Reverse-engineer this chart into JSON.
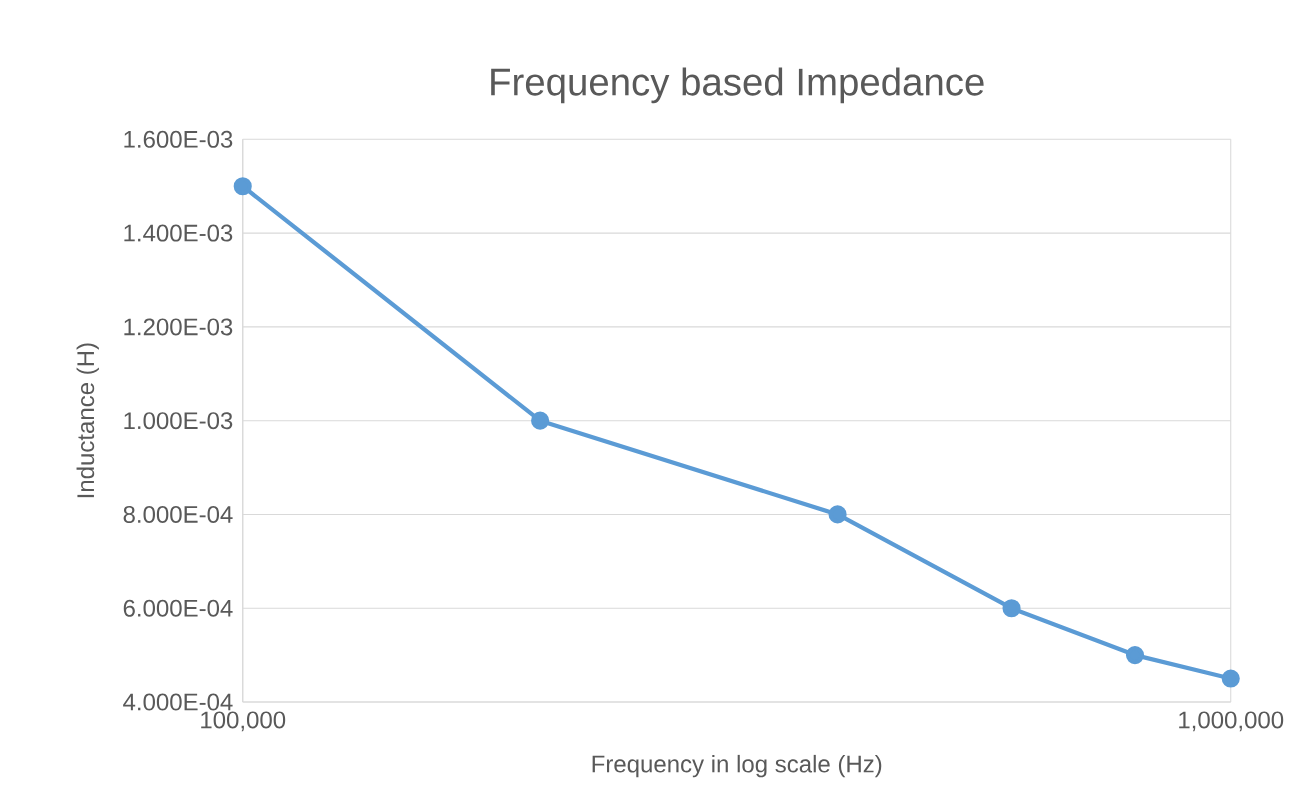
{
  "chart_data": {
    "type": "line",
    "title": "Frequency based Impedance",
    "xlabel": "Frequency in log scale (Hz)",
    "ylabel": "Inductance (H)",
    "x": [
      100000,
      200000,
      400000,
      600000,
      800000,
      1000000
    ],
    "values": [
      0.0015,
      0.001,
      0.0008,
      0.0006,
      0.0005,
      0.00045
    ],
    "color": "#5b9bd5",
    "marker": "circle",
    "line_style": "solid",
    "log": "x",
    "grid": true,
    "xlim": [
      100000,
      1000000
    ],
    "xticks": [
      {
        "value": 100000,
        "label": "100,000"
      },
      {
        "value": 1000000,
        "label": "1,000,000"
      }
    ],
    "ylim": [
      0.0004,
      0.0016
    ],
    "yticks": [
      {
        "value": 0.0004,
        "label": "4.000E-04"
      },
      {
        "value": 0.0006,
        "label": "6.000E-04"
      },
      {
        "value": 0.0008,
        "label": "8.000E-04"
      },
      {
        "value": 0.001,
        "label": "1.000E-03"
      },
      {
        "value": 0.0012,
        "label": "1.200E-03"
      },
      {
        "value": 0.0014,
        "label": "1.400E-03"
      },
      {
        "value": 0.0016,
        "label": "1.600E-03"
      }
    ]
  }
}
